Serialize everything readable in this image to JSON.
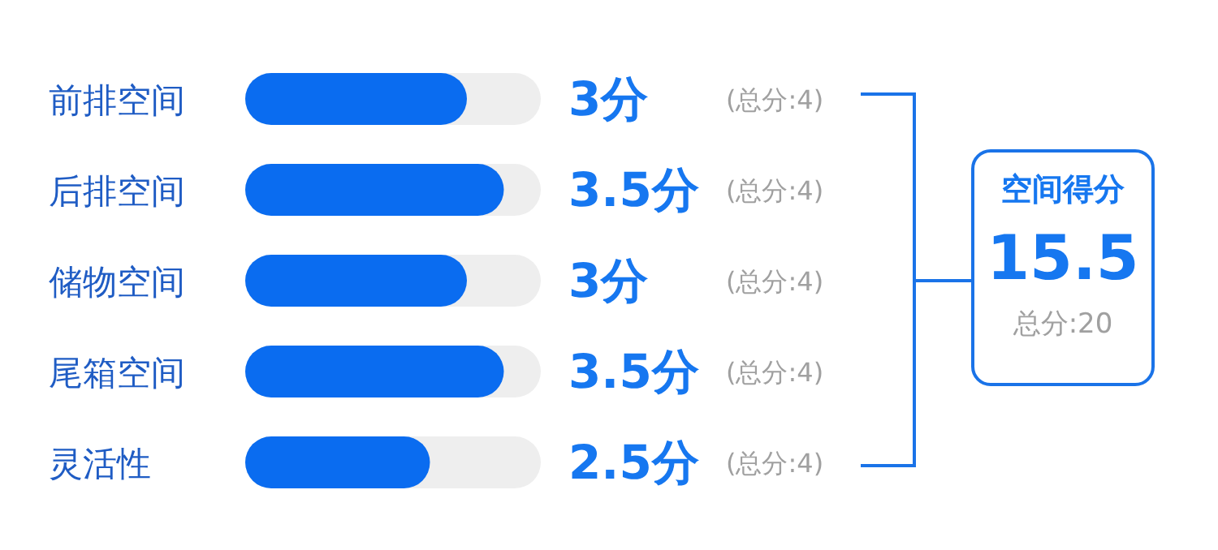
{
  "chart_data": {
    "type": "bar",
    "orientation": "horizontal",
    "categories": [
      "前排空间",
      "后排空间",
      "储物空间",
      "尾箱空间",
      "灵活性"
    ],
    "values": [
      3,
      3.5,
      3,
      3.5,
      2.5
    ],
    "color": "#0a6cf0",
    "value_labels": [
      "3分",
      "3.5分",
      "3分",
      "3.5分",
      "2.5分"
    ],
    "xlim": [
      0,
      4
    ],
    "tick_labels": "y",
    "grid": false,
    "legend": false,
    "annotations": [
      "(总分:4)",
      "(总分:4)",
      "(总分:4)",
      "(总分:4)",
      "(总分:4)",
      "空间得分",
      "15.5",
      "总分:20"
    ]
  }
}
